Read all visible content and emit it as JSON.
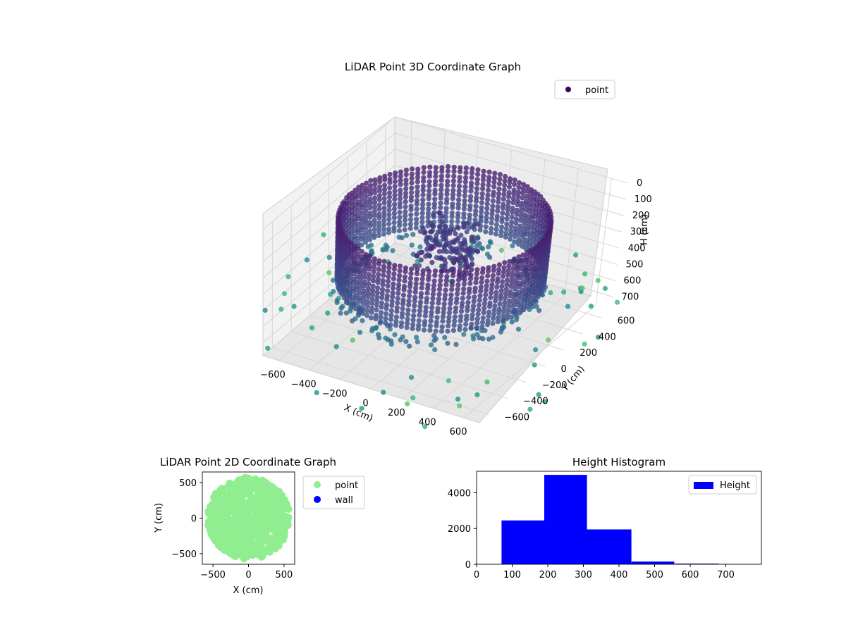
{
  "chart_data": [
    {
      "type": "scatter3d",
      "title": "LiDAR Point 3D Coordinate Graph",
      "xlabel": "X (cm)",
      "ylabel": "Y (cm)",
      "zlabel": "H (cm)",
      "xlim": [
        -700,
        700
      ],
      "ylim": [
        -700,
        700
      ],
      "zlim": [
        0,
        780
      ],
      "z_inverted": true,
      "xticks": [
        "−600",
        "−400",
        "−200",
        "0",
        "200",
        "400",
        "600"
      ],
      "yticks": [
        "−600",
        "−400",
        "−200",
        "0",
        "200",
        "400",
        "600"
      ],
      "zticks": [
        "0",
        "100",
        "200",
        "300",
        "400",
        "500",
        "600",
        "700"
      ],
      "grid": true,
      "colormap": "viridis",
      "legend": {
        "placement": "top-right",
        "entries": [
          {
            "label": "point",
            "color": "#440154"
          }
        ]
      },
      "series": [
        {
          "name": "point",
          "wall_radius": 560,
          "wall_height_range": [
            80,
            460
          ],
          "floor_ring_height": 520
        }
      ]
    },
    {
      "type": "scatter",
      "title": "LiDAR Point 2D Coordinate Graph",
      "xlabel": "X (cm)",
      "ylabel": "Y (cm)",
      "xlim": [
        -650,
        650
      ],
      "ylim": [
        -650,
        650
      ],
      "xticks": [
        "−500",
        "0",
        "500"
      ],
      "yticks": [
        "−500",
        "0",
        "500"
      ],
      "legend": {
        "placement": "outside-right",
        "entries": [
          {
            "label": "point",
            "color": "#90ee90"
          },
          {
            "label": "wall",
            "color": "#0000ff"
          }
        ]
      }
    },
    {
      "type": "bar",
      "title": "Height Histogram",
      "xlim": [
        0,
        800
      ],
      "ylim": [
        0,
        5200
      ],
      "xticks": [
        "0",
        "100",
        "200",
        "300",
        "400",
        "500",
        "600",
        "700"
      ],
      "yticks": [
        "0",
        "2000",
        "4000"
      ],
      "bin_edges": [
        70,
        190,
        310,
        435,
        555,
        680,
        800
      ],
      "values": [
        2450,
        5000,
        1950,
        150,
        40,
        8
      ],
      "color": "#0000ff",
      "legend": {
        "placement": "top-right",
        "entries": [
          {
            "label": "Height",
            "color": "#0000ff"
          }
        ]
      }
    }
  ]
}
